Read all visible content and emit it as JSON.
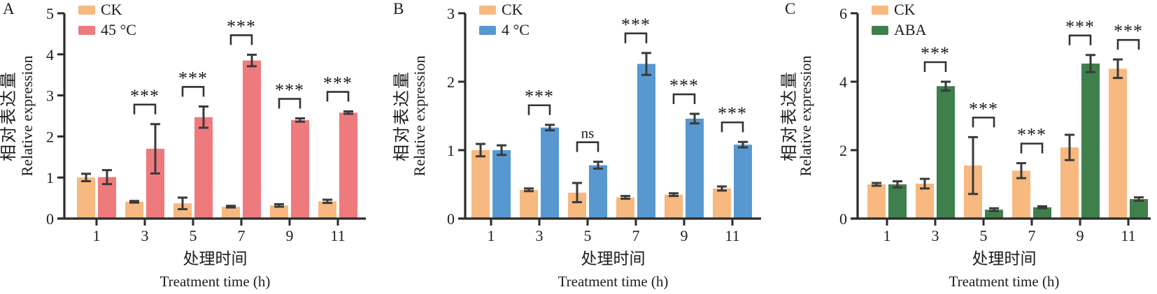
{
  "figure": {
    "description": "Three-panel grouped bar figure of relative gene expression under stress treatments",
    "ylabel_zh": "相对表达量",
    "ylabel_en": "Relative expression",
    "xlabel_zh": "处理时间",
    "xlabel_en": "Treatment time (h)"
  },
  "styles": {
    "ck_color": "#F7B980",
    "heat_color": "#EF7A7E",
    "cold_color": "#5898D0",
    "aba_color": "#3E7F4B",
    "axis_color": "#2b2b2b",
    "error_color": "#3a3a3a",
    "text_color": "#1d1d1d"
  },
  "chart_data": [
    {
      "type": "bar",
      "panel_label": "A",
      "title": "",
      "xlabel_zh": "处理时间",
      "xlabel_en": "Treatment time (h)",
      "ylabel_zh": "相对表达量",
      "ylabel_en": "Relative expression",
      "categories": [
        "1",
        "3",
        "5",
        "7",
        "9",
        "11"
      ],
      "ylim": [
        0,
        5
      ],
      "yticks": [
        0,
        1,
        2,
        3,
        4,
        5
      ],
      "grid": false,
      "legend_position": "top-left",
      "legend": [
        "CK",
        "45 °C"
      ],
      "colors": [
        "#F7B980",
        "#EF7A7E"
      ],
      "series": [
        {
          "name": "CK",
          "values": [
            1.0,
            0.41,
            0.37,
            0.29,
            0.32,
            0.42
          ],
          "errors": [
            0.09,
            0.02,
            0.14,
            0.02,
            0.03,
            0.04
          ]
        },
        {
          "name": "45 °C",
          "values": [
            1.01,
            1.7,
            2.47,
            3.85,
            2.4,
            2.58
          ],
          "errors": [
            0.17,
            0.6,
            0.26,
            0.14,
            0.04,
            0.03
          ]
        }
      ],
      "significance": [
        "",
        "***",
        "***",
        "***",
        "***",
        "***"
      ]
    },
    {
      "type": "bar",
      "panel_label": "B",
      "title": "",
      "xlabel_zh": "处理时间",
      "xlabel_en": "Treatment time (h)",
      "ylabel_zh": "相对表达量",
      "ylabel_en": "Relative expression",
      "categories": [
        "1",
        "3",
        "5",
        "7",
        "9",
        "11"
      ],
      "ylim": [
        0,
        3
      ],
      "yticks": [
        0,
        1,
        2,
        3
      ],
      "grid": false,
      "legend_position": "top-left",
      "legend": [
        "CK",
        "4 °C"
      ],
      "colors": [
        "#F7B980",
        "#5898D0"
      ],
      "series": [
        {
          "name": "CK",
          "values": [
            1.0,
            0.42,
            0.38,
            0.31,
            0.35,
            0.44
          ],
          "errors": [
            0.09,
            0.02,
            0.14,
            0.02,
            0.02,
            0.03
          ]
        },
        {
          "name": "4 °C",
          "values": [
            1.0,
            1.33,
            0.78,
            2.26,
            1.46,
            1.08
          ],
          "errors": [
            0.07,
            0.04,
            0.05,
            0.16,
            0.07,
            0.04
          ]
        }
      ],
      "significance": [
        "",
        "***",
        "ns",
        "***",
        "***",
        "***"
      ]
    },
    {
      "type": "bar",
      "panel_label": "C",
      "title": "",
      "xlabel_zh": "处理时间",
      "xlabel_en": "Treatment time (h)",
      "ylabel_zh": "相对表达量",
      "ylabel_en": "Relative expression",
      "categories": [
        "1",
        "3",
        "5",
        "7",
        "9",
        "11"
      ],
      "ylim": [
        0,
        6
      ],
      "yticks": [
        0,
        2,
        4,
        6
      ],
      "grid": false,
      "legend_position": "top-left",
      "legend": [
        "CK",
        "ABA"
      ],
      "colors": [
        "#F7B980",
        "#3E7F4B"
      ],
      "series": [
        {
          "name": "CK",
          "values": [
            1.0,
            1.02,
            1.55,
            1.4,
            2.08,
            4.38
          ],
          "errors": [
            0.04,
            0.14,
            0.83,
            0.22,
            0.37,
            0.27
          ]
        },
        {
          "name": "ABA",
          "values": [
            1.0,
            3.87,
            0.26,
            0.33,
            4.53,
            0.57
          ],
          "errors": [
            0.09,
            0.13,
            0.04,
            0.03,
            0.25,
            0.05
          ]
        }
      ],
      "significance": [
        "",
        "***",
        "***",
        "***",
        "***",
        "***"
      ]
    }
  ]
}
